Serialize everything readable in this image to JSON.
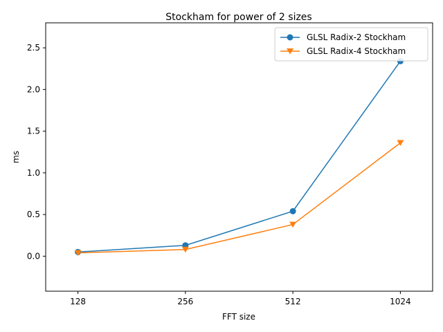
{
  "chart_data": {
    "type": "line",
    "title": "Stockham for power of 2 sizes",
    "xlabel": "FFT size",
    "ylabel": "ms",
    "categories": [
      "128",
      "256",
      "512",
      "1024"
    ],
    "ylim": [
      -0.42,
      2.8
    ],
    "yticks": [
      0.0,
      0.5,
      1.0,
      1.5,
      2.0,
      2.5
    ],
    "ytick_labels": [
      "0.0",
      "0.5",
      "1.0",
      "1.5",
      "2.0",
      "2.5"
    ],
    "grid": false,
    "legend_position": "upper right",
    "series": [
      {
        "name": "GLSL Radix-2 Stockham",
        "values": [
          0.05,
          0.13,
          0.54,
          2.34
        ],
        "color": "#1f77b4",
        "marker": "circle"
      },
      {
        "name": "GLSL Radix-4 Stockham",
        "values": [
          0.04,
          0.08,
          0.38,
          1.36
        ],
        "color": "#ff7f0e",
        "marker": "triangle-down"
      }
    ]
  }
}
